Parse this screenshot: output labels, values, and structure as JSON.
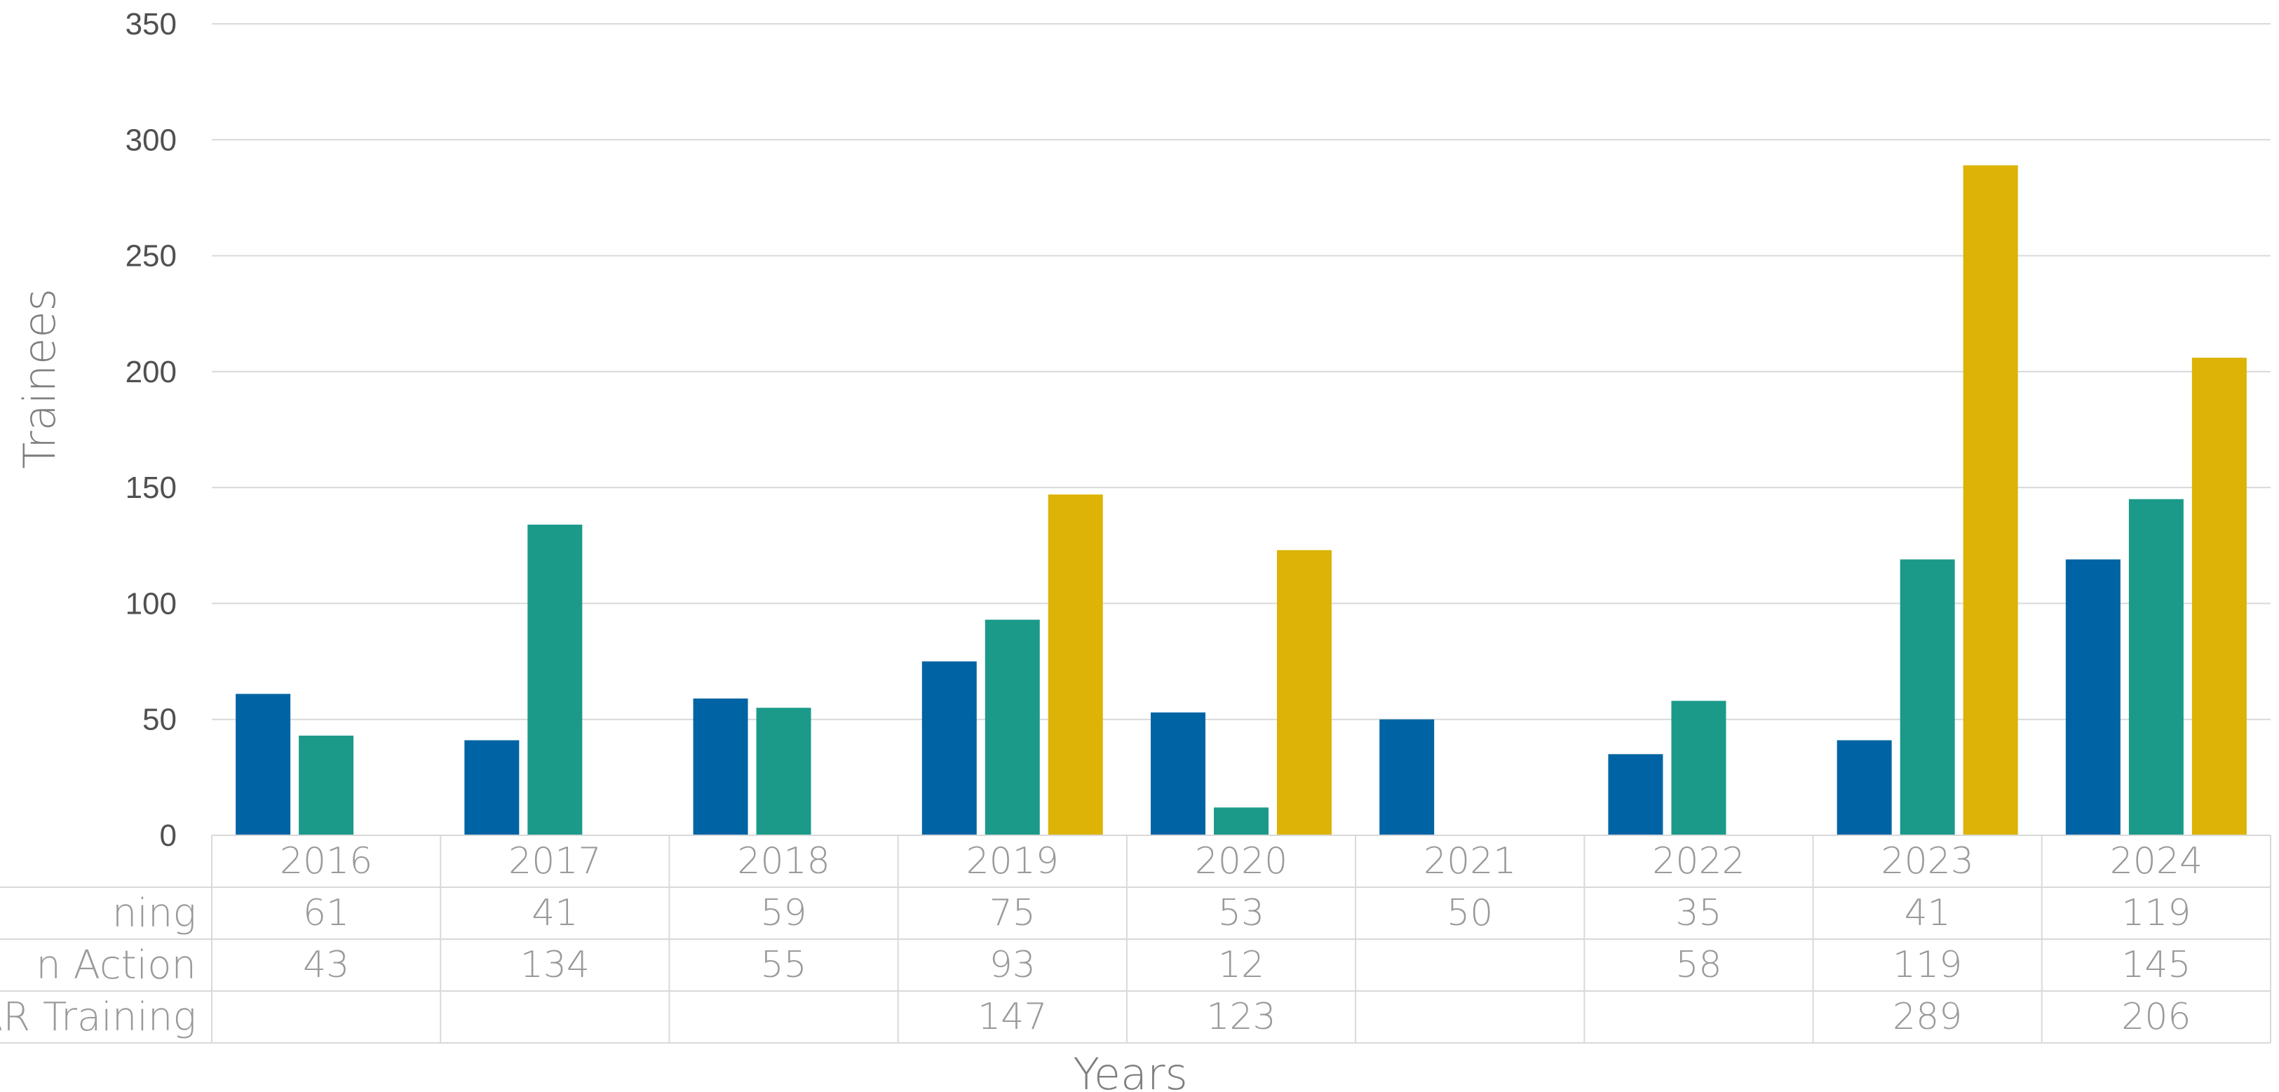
{
  "chart_data": {
    "type": "bar",
    "categories": [
      "2016",
      "2017",
      "2018",
      "2019",
      "2020",
      "2021",
      "2022",
      "2023",
      "2024"
    ],
    "series": [
      {
        "name": "ning",
        "color": "#0064a4",
        "values": [
          61,
          41,
          59,
          75,
          53,
          50,
          35,
          41,
          119
        ]
      },
      {
        "name": "n Action",
        "color": "#1b9a8a",
        "values": [
          43,
          134,
          55,
          93,
          12,
          null,
          58,
          119,
          145
        ]
      },
      {
        "name": "AR Training",
        "color": "#dcb306",
        "values": [
          null,
          null,
          null,
          147,
          123,
          null,
          null,
          289,
          206
        ]
      }
    ],
    "xlabel": "Years",
    "ylabel": "Trainees",
    "ylim": [
      0,
      350
    ],
    "yticks": [
      0,
      50,
      100,
      150,
      200,
      250,
      300,
      350
    ],
    "grid": true,
    "data_table": true
  }
}
